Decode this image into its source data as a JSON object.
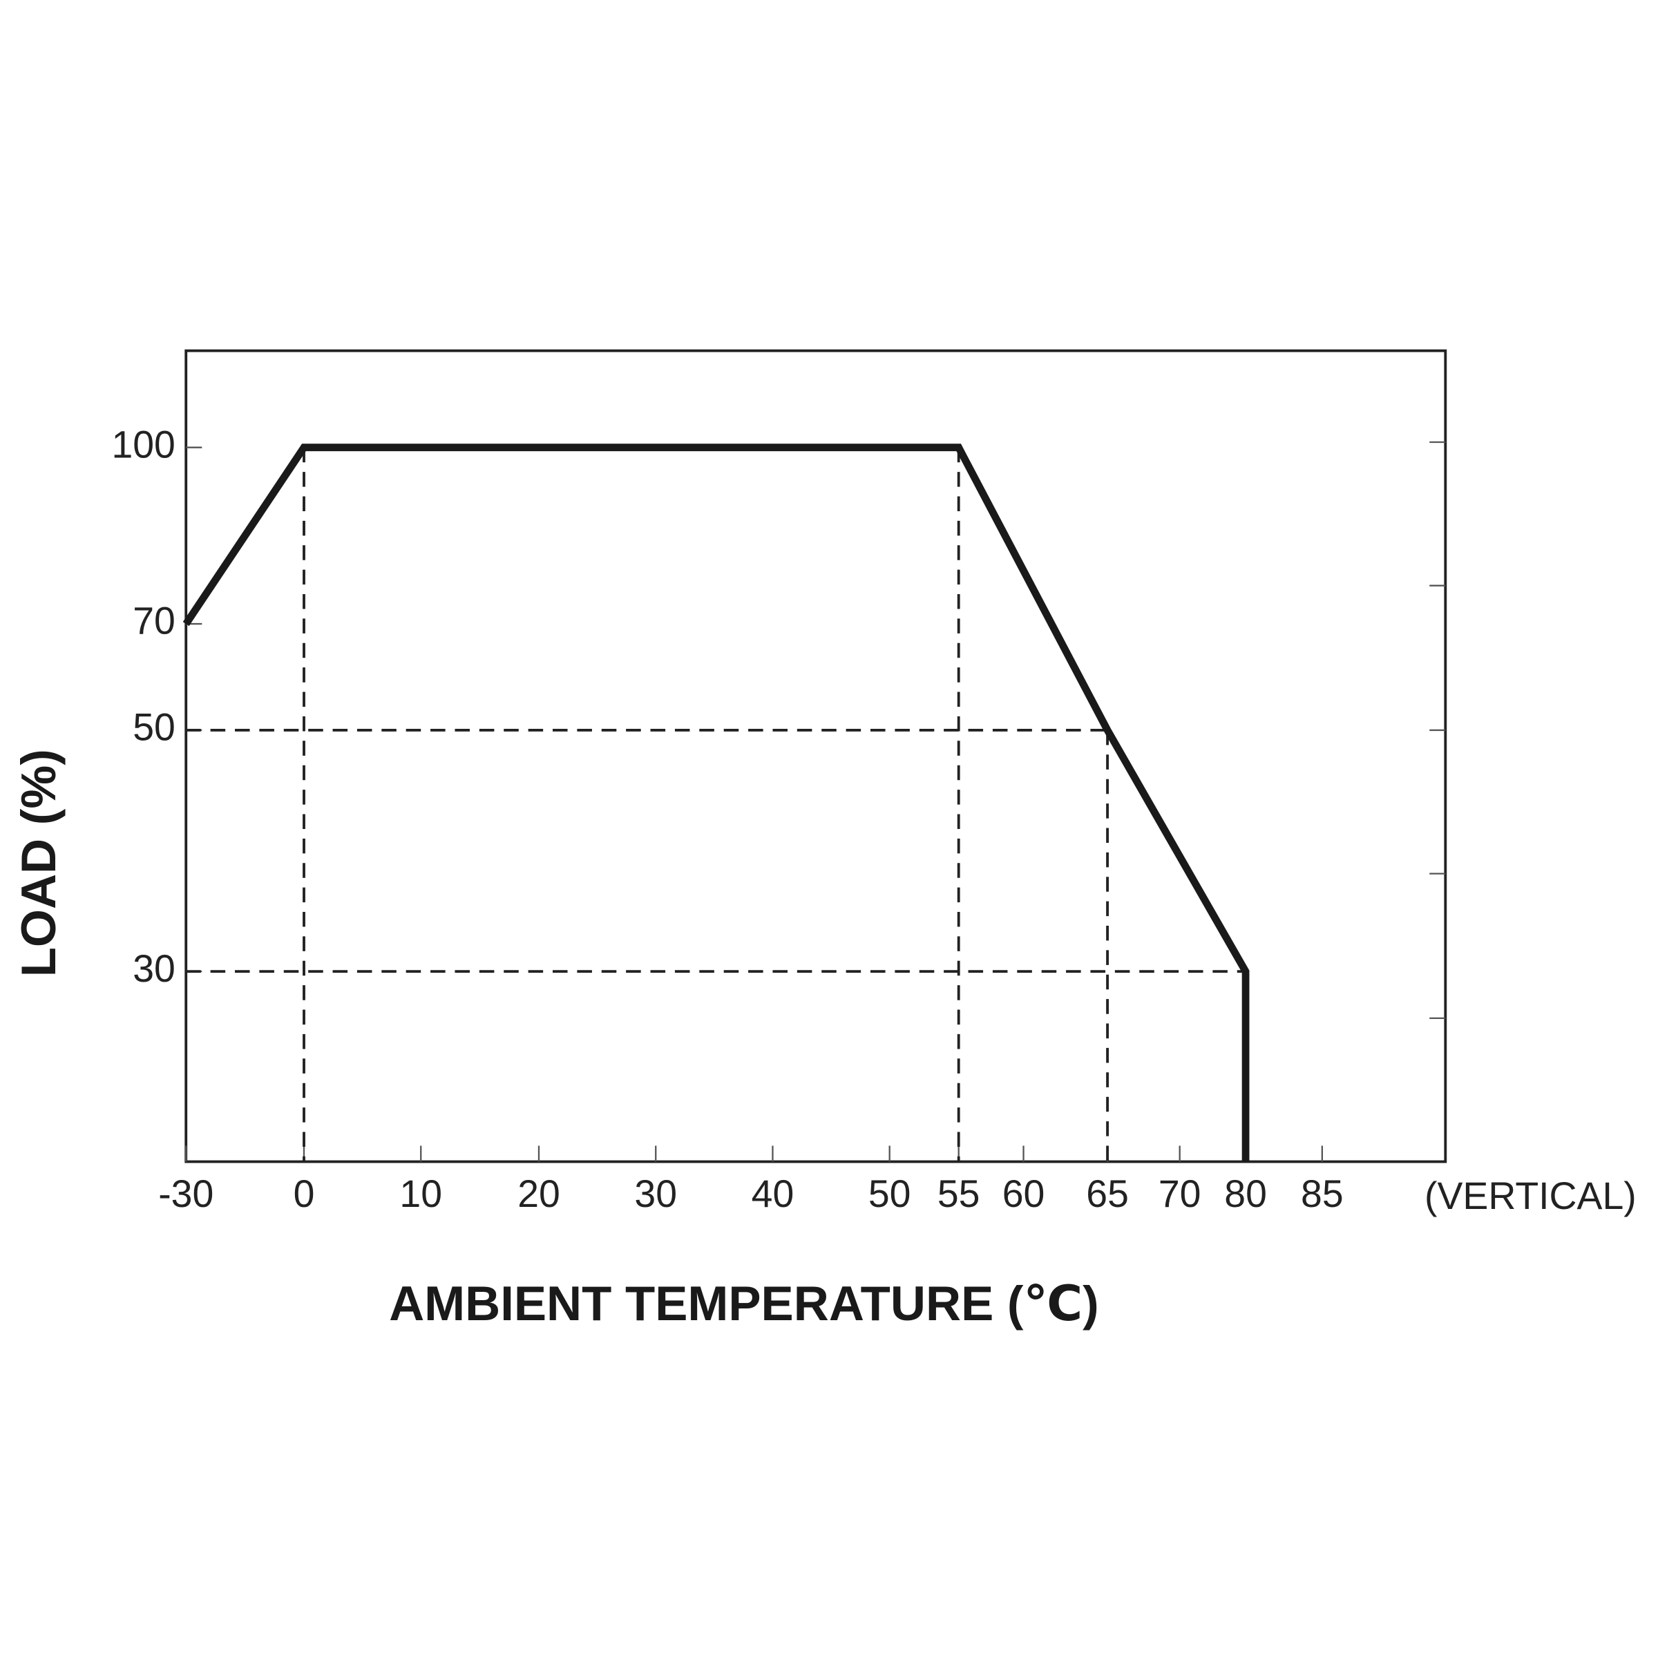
{
  "chart_data": {
    "type": "line",
    "x_label": "AMBIENT TEMPERATURE (℃)",
    "y_label": "LOAD (%)",
    "annotation": "(VERTICAL)",
    "x": [
      -30,
      0,
      55,
      65,
      80,
      80
    ],
    "values": [
      70,
      100,
      100,
      50,
      30,
      0
    ],
    "color": "#1a1a1a",
    "xlim": [
      -30,
      95
    ],
    "ylim": [
      0,
      120
    ],
    "xticks": [
      -30,
      0,
      10,
      20,
      30,
      40,
      50,
      55,
      60,
      65,
      70,
      80,
      85
    ],
    "yticks": [
      100,
      70,
      50,
      30
    ],
    "vlines": [
      {
        "x": 0,
        "y": 100
      },
      {
        "x": 55,
        "y": 100
      },
      {
        "x": 65,
        "y": 50
      }
    ],
    "hlines": [
      {
        "y": 50,
        "x": 65
      },
      {
        "y": 30,
        "x": 80
      }
    ]
  }
}
